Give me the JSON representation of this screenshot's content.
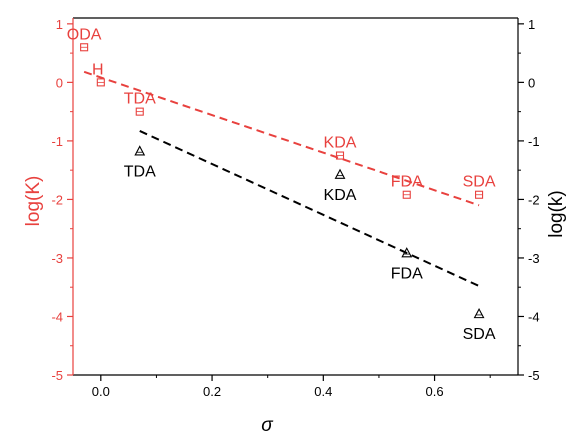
{
  "chart_data": {
    "type": "scatter",
    "xlabel": "σ",
    "ylabel_left": "log(K)",
    "ylabel_right": "log(k)",
    "xlim": [
      -0.05,
      0.75
    ],
    "ylim_left": [
      -5,
      1.1
    ],
    "ylim_right": [
      -5,
      1.1
    ],
    "xticks": [
      {
        "value": 0.0,
        "label": "0.0"
      },
      {
        "value": 0.2,
        "label": "0.2"
      },
      {
        "value": 0.4,
        "label": "0.4"
      },
      {
        "value": 0.6,
        "label": "0.6"
      }
    ],
    "yticks_left": [
      {
        "value": 1,
        "label": "1"
      },
      {
        "value": 0,
        "label": "0"
      },
      {
        "value": -1,
        "label": "-1"
      },
      {
        "value": -2,
        "label": "-2"
      },
      {
        "value": -3,
        "label": "-3"
      },
      {
        "value": -4,
        "label": "-4"
      },
      {
        "value": -5,
        "label": "-5"
      }
    ],
    "yticks_right": [
      {
        "value": 1,
        "label": "1"
      },
      {
        "value": 0,
        "label": "0"
      },
      {
        "value": -1,
        "label": "-1"
      },
      {
        "value": -2,
        "label": "-2"
      },
      {
        "value": -3,
        "label": "-3"
      },
      {
        "value": -4,
        "label": "-4"
      },
      {
        "value": -5,
        "label": "-5"
      }
    ],
    "colors": {
      "left": "#e8413e",
      "right": "#000000"
    },
    "series": [
      {
        "axis": "left",
        "marker": "square",
        "color": "#e8413e",
        "points": [
          {
            "label": "ODA",
            "x": -0.03,
            "y": 0.6,
            "label_pos": "above"
          },
          {
            "label": "H",
            "x": 0.0,
            "y": 0.0,
            "label_pos": "above-left"
          },
          {
            "label": "TDA",
            "x": 0.07,
            "y": -0.5,
            "label_pos": "above"
          },
          {
            "label": "KDA",
            "x": 0.43,
            "y": -1.25,
            "label_pos": "above"
          },
          {
            "label": "FDA",
            "x": 0.55,
            "y": -1.92,
            "label_pos": "above"
          },
          {
            "label": "SDA",
            "x": 0.68,
            "y": -1.92,
            "label_pos": "above"
          }
        ],
        "fit": {
          "x": [
            -0.03,
            0.68
          ],
          "y": [
            0.18,
            -2.1
          ]
        }
      },
      {
        "axis": "right",
        "marker": "triangle",
        "color": "#000000",
        "points": [
          {
            "label": "TDA",
            "x": 0.07,
            "y": -1.18,
            "label_pos": "below"
          },
          {
            "label": "KDA",
            "x": 0.43,
            "y": -1.58,
            "label_pos": "below"
          },
          {
            "label": "FDA",
            "x": 0.55,
            "y": -2.92,
            "label_pos": "below"
          },
          {
            "label": "SDA",
            "x": 0.68,
            "y": -3.96,
            "label_pos": "below"
          }
        ],
        "fit": {
          "x": [
            0.07,
            0.68
          ],
          "y": [
            -0.83,
            -3.48
          ]
        }
      }
    ]
  }
}
